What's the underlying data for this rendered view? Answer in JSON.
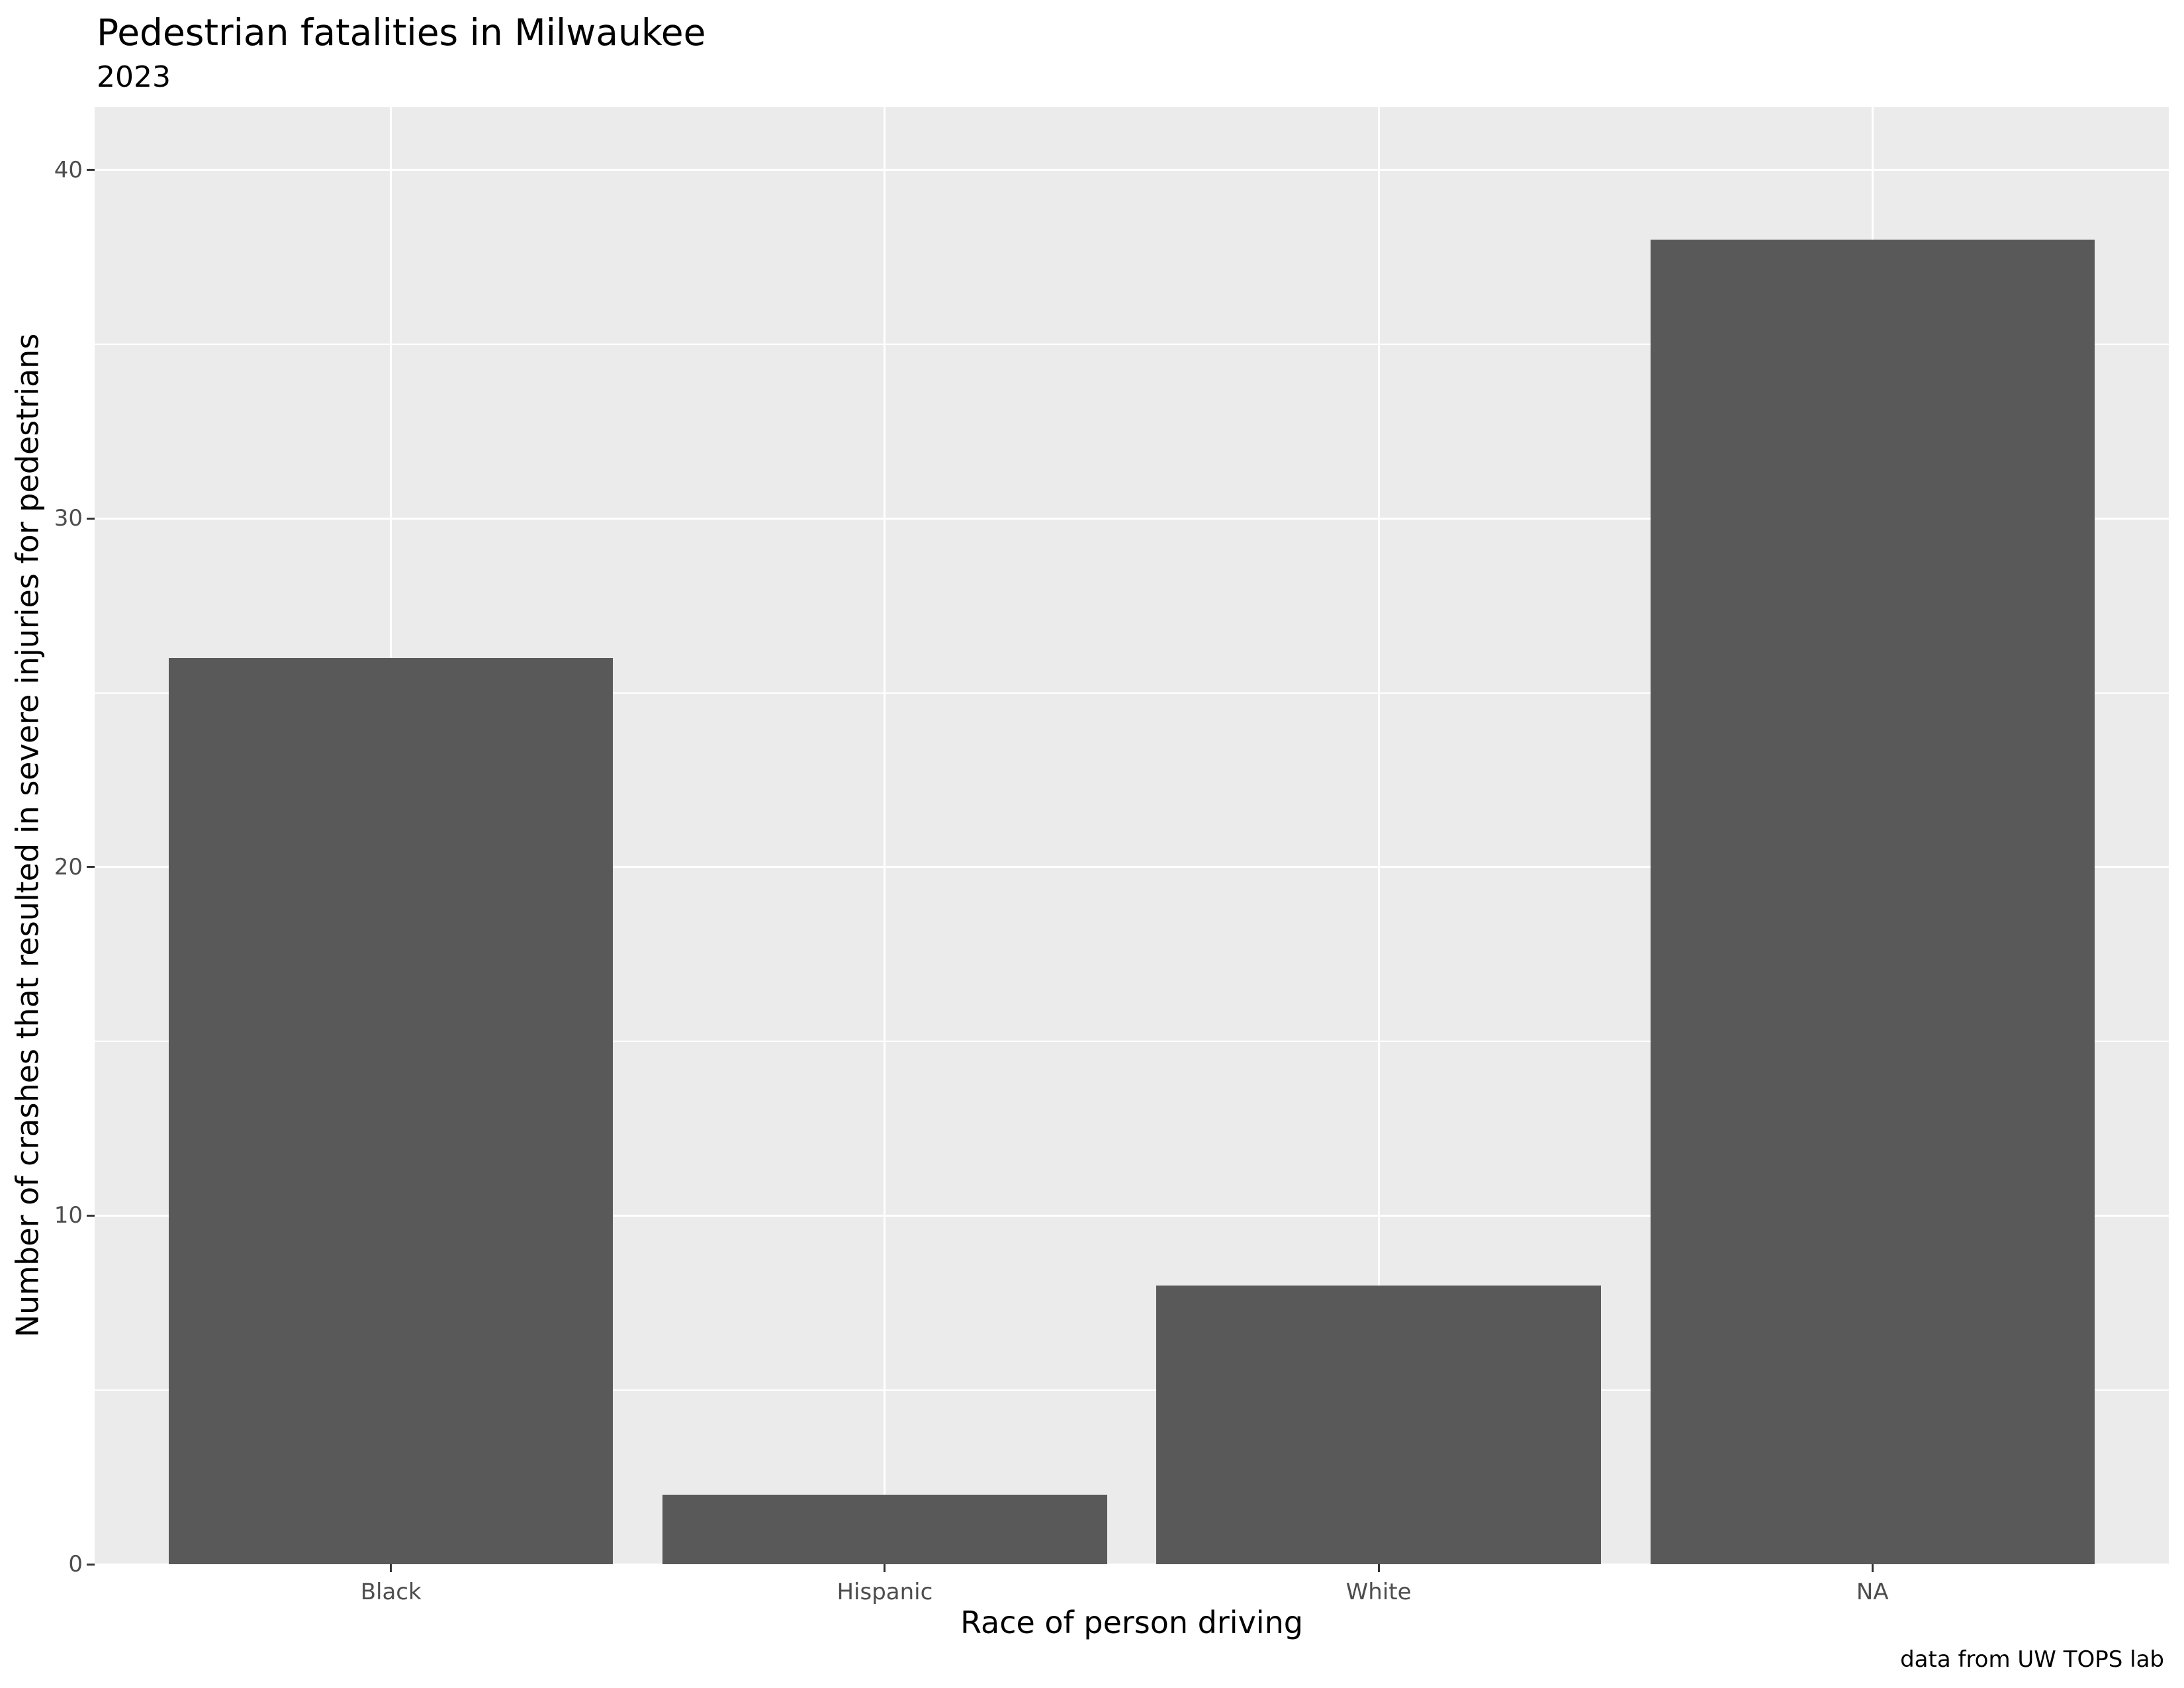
{
  "chart_data": {
    "type": "bar",
    "title": "Pedestrian fatalities in Milwaukee",
    "subtitle": "2023",
    "caption": "data from UW TOPS lab",
    "xlabel": "Race of person driving",
    "ylabel": "Number of crashes that resulted in severe injuries for pedestrians",
    "categories": [
      "Black",
      "Hispanic",
      "White",
      "NA"
    ],
    "values": [
      26,
      2,
      8,
      38
    ],
    "ylim": [
      0,
      41.8
    ],
    "yticks_major": [
      0,
      10,
      20,
      30,
      40
    ],
    "yticks_minor": [
      5,
      15,
      25,
      35
    ],
    "legend": "none",
    "grid": "white major+minor horizontal, white major vertical at category centers",
    "bar_color": "#595959",
    "panel_bg": "#EBEBEB",
    "grid_color": "#FFFFFF",
    "tick_label_color": "#4D4D4D",
    "tick_mark_color": "#333333",
    "text_color": "#000000"
  }
}
